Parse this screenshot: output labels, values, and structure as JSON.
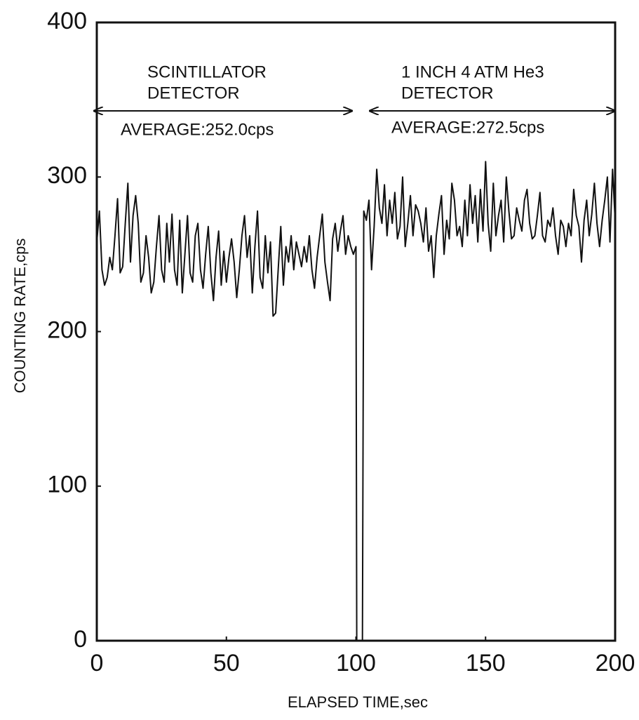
{
  "chart_data": {
    "type": "line",
    "xlabel": "ELAPSED TIME,sec",
    "ylabel": "COUNTING RATE,cps",
    "annotations": [
      "SCINTILLATOR",
      "DETECTOR",
      "AVERAGE:252.0cps",
      "1 INCH 4 ATM He3",
      "DETECTOR",
      "AVERAGE:272.5cps"
    ],
    "x": [
      0,
      1,
      2,
      3,
      4,
      5,
      6,
      7,
      8,
      9,
      10,
      11,
      12,
      13,
      14,
      15,
      16,
      17,
      18,
      19,
      20,
      21,
      22,
      23,
      24,
      25,
      26,
      27,
      28,
      29,
      30,
      31,
      32,
      33,
      34,
      35,
      36,
      37,
      38,
      39,
      40,
      41,
      42,
      43,
      44,
      45,
      46,
      47,
      48,
      49,
      50,
      51,
      52,
      53,
      54,
      55,
      56,
      57,
      58,
      59,
      60,
      61,
      62,
      63,
      64,
      65,
      66,
      67,
      68,
      69,
      70,
      71,
      72,
      73,
      74,
      75,
      76,
      77,
      78,
      79,
      80,
      81,
      82,
      83,
      84,
      85,
      86,
      87,
      88,
      89,
      90,
      91,
      92,
      93,
      94,
      95,
      96,
      97,
      98,
      99,
      100,
      100.3,
      102.5,
      103,
      104,
      105,
      106,
      107,
      108,
      109,
      110,
      111,
      112,
      113,
      114,
      115,
      116,
      117,
      118,
      119,
      120,
      121,
      122,
      123,
      124,
      125,
      126,
      127,
      128,
      129,
      130,
      131,
      132,
      133,
      134,
      135,
      136,
      137,
      138,
      139,
      140,
      141,
      142,
      143,
      144,
      145,
      146,
      147,
      148,
      149,
      150,
      151,
      152,
      153,
      154,
      155,
      156,
      157,
      158,
      159,
      160,
      161,
      162,
      163,
      164,
      165,
      166,
      167,
      168,
      169,
      170,
      171,
      172,
      173,
      174,
      175,
      176,
      177,
      178,
      179,
      180,
      181,
      182,
      183,
      184,
      185,
      186,
      187,
      188,
      189,
      190,
      191,
      192,
      193,
      194,
      195,
      196,
      197,
      198,
      199,
      200
    ],
    "series": [
      {
        "color": "#111111",
        "values": [
          258,
          278,
          240,
          230,
          235,
          248,
          240,
          262,
          286,
          238,
          242,
          270,
          296,
          245,
          275,
          288,
          270,
          232,
          238,
          262,
          248,
          225,
          232,
          255,
          275,
          240,
          232,
          270,
          245,
          276,
          240,
          230,
          272,
          225,
          250,
          275,
          238,
          232,
          262,
          270,
          240,
          228,
          250,
          268,
          238,
          220,
          248,
          265,
          230,
          252,
          232,
          248,
          260,
          245,
          222,
          240,
          262,
          275,
          248,
          262,
          225,
          255,
          278,
          235,
          228,
          262,
          238,
          258,
          210,
          212,
          240,
          268,
          230,
          255,
          245,
          262,
          240,
          258,
          250,
          242,
          255,
          245,
          262,
          240,
          228,
          248,
          262,
          276,
          245,
          232,
          220,
          260,
          270,
          252,
          265,
          275,
          250,
          262,
          255,
          250,
          255,
          0,
          0,
          278,
          272,
          285,
          240,
          268,
          305,
          280,
          270,
          295,
          262,
          285,
          270,
          290,
          260,
          268,
          300,
          255,
          270,
          288,
          262,
          282,
          278,
          270,
          258,
          280,
          252,
          262,
          235,
          262,
          276,
          288,
          250,
          272,
          260,
          296,
          285,
          262,
          268,
          255,
          285,
          262,
          295,
          270,
          288,
          258,
          292,
          265,
          310,
          270,
          252,
          296,
          262,
          275,
          285,
          258,
          300,
          278,
          260,
          262,
          280,
          272,
          265,
          285,
          292,
          270,
          260,
          262,
          275,
          290,
          262,
          258,
          272,
          268,
          280,
          262,
          250,
          272,
          268,
          255,
          270,
          262,
          292,
          275,
          268,
          245,
          272,
          285,
          262,
          276,
          296,
          270,
          255,
          272,
          285,
          300,
          258,
          305,
          272
        ]
      }
    ],
    "xlim": [
      0,
      200
    ],
    "ylim": [
      0,
      400
    ],
    "xticks": [
      0,
      50,
      100,
      150,
      200
    ],
    "yticks": [
      0,
      100,
      200,
      300,
      400
    ]
  }
}
